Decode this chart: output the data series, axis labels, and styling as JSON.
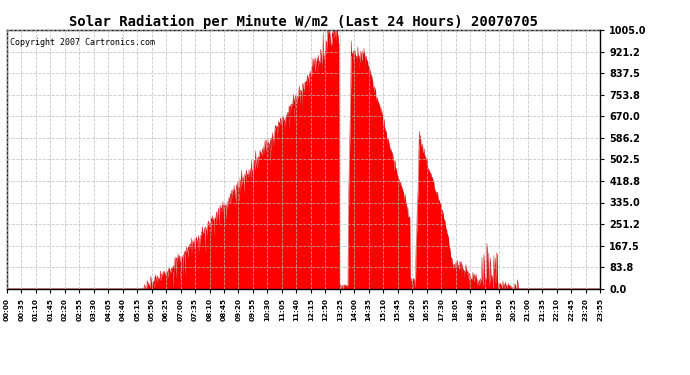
{
  "title": "Solar Radiation per Minute W/m2 (Last 24 Hours) 20070705",
  "copyright_text": "Copyright 2007 Cartronics.com",
  "y_max": 1005.0,
  "y_min": 0.0,
  "y_ticks": [
    0.0,
    83.8,
    167.5,
    251.2,
    335.0,
    418.8,
    502.5,
    586.2,
    670.0,
    753.8,
    837.5,
    921.2,
    1005.0
  ],
  "fill_color": "#FF0000",
  "line_color": "#CC0000",
  "background_color": "#FFFFFF",
  "grid_color": "#BBBBBB",
  "dashed_line_color": "#FF0000",
  "x_labels": [
    "00:00",
    "00:35",
    "01:10",
    "01:45",
    "02:20",
    "02:55",
    "03:30",
    "04:05",
    "04:40",
    "05:15",
    "05:50",
    "06:25",
    "07:00",
    "07:35",
    "08:10",
    "08:45",
    "09:20",
    "09:55",
    "10:30",
    "11:05",
    "11:40",
    "12:15",
    "12:50",
    "13:25",
    "14:00",
    "14:35",
    "15:10",
    "15:45",
    "16:20",
    "16:55",
    "17:30",
    "18:05",
    "18:40",
    "19:15",
    "19:50",
    "20:25",
    "21:00",
    "21:35",
    "22:10",
    "22:45",
    "23:20",
    "23:55"
  ],
  "num_points": 1440
}
